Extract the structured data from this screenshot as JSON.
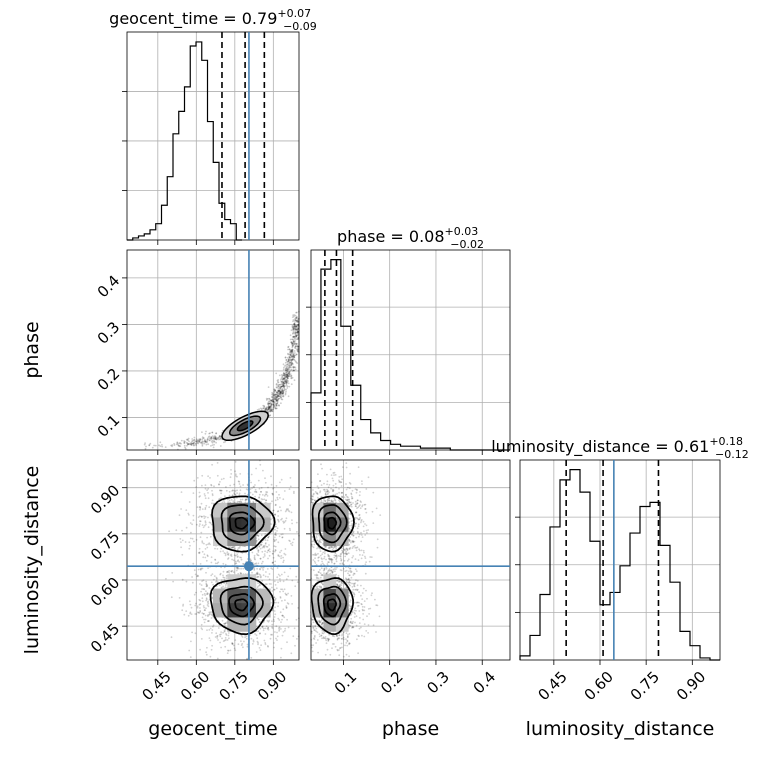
{
  "chart_data": {
    "type": "corner",
    "colors": {
      "truth": "#4682b4",
      "hist": "#000000",
      "grid": "#b0b0b0"
    },
    "params": [
      {
        "name": "geocent_time",
        "title_prefix": "geocent_time = 0.79",
        "err_plus": "+0.07",
        "err_minus": "−0.09",
        "range": [
          0.33,
          1.0
        ],
        "ticks": [
          0.45,
          0.6,
          0.75,
          0.9
        ],
        "tick_labels": [
          "0.45",
          "0.60",
          "0.75",
          "0.90"
        ],
        "quantiles": [
          0.7,
          0.79,
          0.865
        ],
        "truth": 0.805,
        "hist_edges_start": 0.33,
        "hist_bin_width": 0.0224,
        "hist_counts": [
          0,
          1,
          2,
          3,
          5,
          8,
          17,
          31,
          52,
          63,
          75,
          95,
          97,
          88,
          58,
          38,
          18,
          10,
          8,
          0
        ]
      },
      {
        "name": "phase",
        "title_prefix": "phase = 0.08",
        "err_plus": "+0.03",
        "err_minus": "−0.02",
        "range": [
          0.03,
          0.46
        ],
        "ticks": [
          0.1,
          0.2,
          0.3,
          0.4
        ],
        "tick_labels": [
          "0.1",
          "0.2",
          "0.3",
          "0.4"
        ],
        "quantiles": [
          0.06,
          0.085,
          0.12
        ],
        "truth": null,
        "hist_edges_start": 0.03,
        "hist_bin_width": 0.0215,
        "hist_counts": [
          30,
          95,
          100,
          65,
          34,
          16,
          9,
          5,
          3,
          2,
          2,
          1,
          1,
          1,
          0,
          0,
          0,
          0,
          0,
          0
        ]
      },
      {
        "name": "luminosity_distance",
        "title_prefix": "luminosity_distance = 0.61",
        "err_plus": "+0.18",
        "err_minus": "−0.12",
        "range": [
          0.34,
          0.99
        ],
        "ticks": [
          0.45,
          0.6,
          0.75,
          0.9
        ],
        "tick_labels": [
          "0.45",
          "0.60",
          "0.75",
          "0.90"
        ],
        "quantiles": [
          0.49,
          0.61,
          0.79
        ],
        "truth": 0.645,
        "hist_edges_start": 0.34,
        "hist_bin_width": 0.0325,
        "hist_counts": [
          2,
          12,
          32,
          65,
          88,
          93,
          82,
          58,
          27,
          33,
          46,
          62,
          75,
          77,
          56,
          38,
          14,
          7,
          1,
          0
        ]
      }
    ],
    "contour_2d": {
      "phase_vs_geocent_time": {
        "truth_x": 0.805,
        "curve_x": [
          0.35,
          0.45,
          0.55,
          0.62,
          0.68,
          0.73,
          0.78,
          0.82,
          0.86,
          0.9,
          0.93,
          0.96,
          0.985,
          1.0
        ],
        "curve_y": [
          0.035,
          0.038,
          0.042,
          0.048,
          0.055,
          0.063,
          0.075,
          0.088,
          0.105,
          0.13,
          0.16,
          0.2,
          0.26,
          0.32
        ],
        "peak_x": 0.79,
        "peak_y": 0.082
      },
      "luminosity_distance_vs_geocent_time": {
        "truth_x": 0.805,
        "truth_y": 0.645,
        "modes": [
          {
            "x": 0.775,
            "y": 0.52,
            "sx": 0.06,
            "sy": 0.045
          },
          {
            "x": 0.775,
            "y": 0.785,
            "sx": 0.06,
            "sy": 0.045
          }
        ]
      },
      "luminosity_distance_vs_phase": {
        "truth_y": 0.645,
        "modes": [
          {
            "x": 0.075,
            "y": 0.52,
            "sx": 0.022,
            "sy": 0.045
          },
          {
            "x": 0.075,
            "y": 0.785,
            "sx": 0.022,
            "sy": 0.045
          }
        ]
      }
    }
  }
}
